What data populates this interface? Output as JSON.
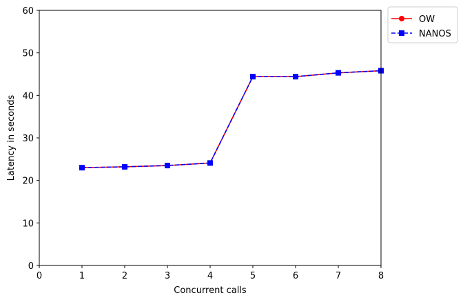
{
  "chart_data": {
    "type": "line",
    "title": "",
    "xlabel": "Concurrent calls",
    "ylabel": "Latency in seconds",
    "xlim": [
      0,
      8
    ],
    "ylim": [
      0,
      60
    ],
    "xticks": [
      0,
      1,
      2,
      3,
      4,
      5,
      6,
      7,
      8
    ],
    "yticks": [
      0,
      10,
      20,
      30,
      40,
      50,
      60
    ],
    "grid": false,
    "legend_position": "outside-top-right",
    "x": [
      1,
      2,
      3,
      4,
      5,
      6,
      7,
      8
    ],
    "series": [
      {
        "name": "OW",
        "color": "#ff0000",
        "marker": "circle",
        "linestyle": "solid",
        "values": [
          23.0,
          23.2,
          23.5,
          24.1,
          44.4,
          44.4,
          45.3,
          45.8
        ]
      },
      {
        "name": "NANOS",
        "color": "#0000ff",
        "marker": "square",
        "linestyle": "dashed",
        "values": [
          23.0,
          23.2,
          23.5,
          24.1,
          44.4,
          44.4,
          45.3,
          45.8
        ]
      }
    ]
  }
}
